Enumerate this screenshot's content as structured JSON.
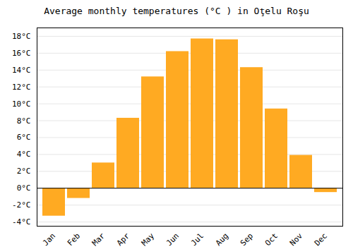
{
  "chart_data": {
    "type": "bar",
    "title": "Average monthly temperatures (°C ) in Oţelu Roşu",
    "categories": [
      "Jan",
      "Feb",
      "Mar",
      "Apr",
      "May",
      "Jun",
      "Jul",
      "Aug",
      "Sep",
      "Oct",
      "Nov",
      "Dec"
    ],
    "values": [
      -3.3,
      -1.2,
      3.0,
      8.3,
      13.2,
      16.2,
      17.7,
      17.6,
      14.3,
      9.4,
      3.9,
      -0.5
    ],
    "color": "#FFAA22",
    "ylim": [
      -4.5,
      19.0
    ],
    "yticks": [
      {
        "value": -4,
        "label": "-4°C"
      },
      {
        "value": -2,
        "label": "-2°C"
      },
      {
        "value": 0,
        "label": "0°C"
      },
      {
        "value": 2,
        "label": "2°C"
      },
      {
        "value": 4,
        "label": "4°C"
      },
      {
        "value": 6,
        "label": "6°C"
      },
      {
        "value": 8,
        "label": "8°C"
      },
      {
        "value": 10,
        "label": "10°C"
      },
      {
        "value": 12,
        "label": "12°C"
      },
      {
        "value": 14,
        "label": "14°C"
      },
      {
        "value": 16,
        "label": "16°C"
      },
      {
        "value": 18,
        "label": "18°C"
      }
    ],
    "grid": true
  }
}
